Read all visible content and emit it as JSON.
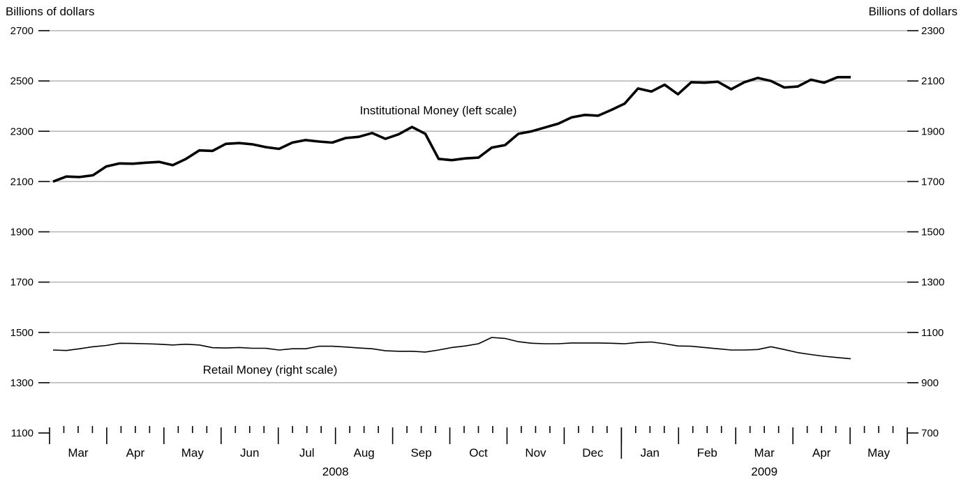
{
  "chart_data": {
    "type": "line",
    "y_axis_left": {
      "title": "Billions of dollars",
      "ticks": [
        2700,
        2500,
        2300,
        2100,
        1900,
        1700,
        1500,
        1300,
        1100
      ],
      "ylim": [
        1100,
        2700
      ]
    },
    "y_axis_right": {
      "title": "Billions of dollars",
      "ticks": [
        2300,
        2100,
        1900,
        1700,
        1500,
        1300,
        1100,
        900,
        700
      ],
      "ylim": [
        700,
        2300
      ]
    },
    "grid": true,
    "x_axis": {
      "months": [
        "Mar",
        "Apr",
        "May",
        "Jun",
        "Jul",
        "Aug",
        "Sep",
        "Oct",
        "Nov",
        "Dec",
        "Jan",
        "Feb",
        "Mar",
        "Apr",
        "May"
      ],
      "years": [
        "2008",
        "2009"
      ],
      "weeks_per_month": 4
    },
    "series": [
      {
        "name": "Institutional Money (left scale)",
        "axis": "left",
        "values": [
          2100,
          2120,
          2118,
          2125,
          2160,
          2172,
          2171,
          2175,
          2178,
          2165,
          2190,
          2224,
          2222,
          2250,
          2253,
          2248,
          2237,
          2230,
          2255,
          2265,
          2259,
          2255,
          2273,
          2278,
          2293,
          2270,
          2288,
          2317,
          2290,
          2190,
          2185,
          2192,
          2195,
          2235,
          2245,
          2290,
          2300,
          2315,
          2330,
          2355,
          2365,
          2362,
          2385,
          2410,
          2470,
          2458,
          2485,
          2447,
          2495,
          2493,
          2497,
          2467,
          2495,
          2512,
          2500,
          2474,
          2478,
          2505,
          2493,
          2515,
          2515
        ]
      },
      {
        "name": "Retail Money (right scale)",
        "axis": "right",
        "values": [
          1030,
          1028,
          1035,
          1043,
          1048,
          1057,
          1056,
          1055,
          1053,
          1050,
          1053,
          1050,
          1039,
          1038,
          1040,
          1037,
          1037,
          1030,
          1035,
          1035,
          1045,
          1045,
          1042,
          1038,
          1035,
          1027,
          1025,
          1025,
          1022,
          1030,
          1040,
          1046,
          1055,
          1080,
          1076,
          1063,
          1057,
          1055,
          1055,
          1058,
          1058,
          1058,
          1057,
          1055,
          1060,
          1062,
          1055,
          1046,
          1045,
          1040,
          1035,
          1030,
          1030,
          1032,
          1043,
          1032,
          1020,
          1012,
          1005,
          1000,
          995
        ]
      }
    ]
  }
}
